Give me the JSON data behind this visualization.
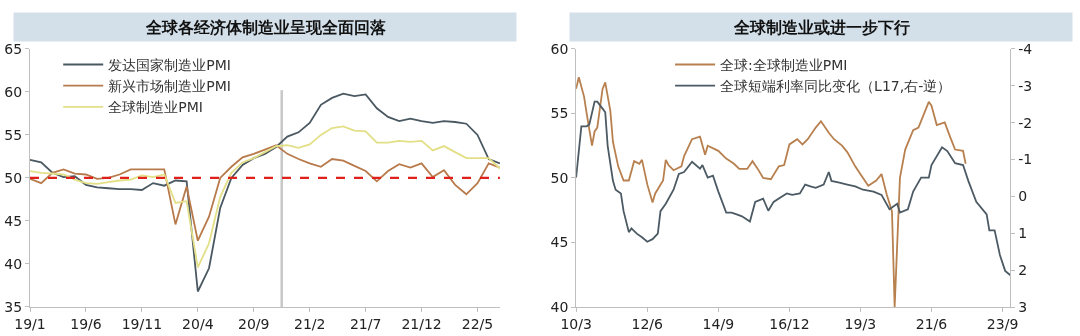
{
  "chart_data": [
    {
      "type": "line",
      "title": "全球各经济体制造业呈现全面回落",
      "legend": "top left",
      "categories": [
        "19/1",
        null,
        null,
        null,
        null,
        "19/6",
        null,
        null,
        null,
        null,
        "19/11",
        null,
        null,
        null,
        null,
        "20/4",
        null,
        null,
        null,
        null,
        "20/9",
        null,
        null,
        null,
        null,
        "21/2",
        null,
        null,
        null,
        null,
        "21/7",
        null,
        null,
        null,
        null,
        "21/12",
        null,
        null,
        null,
        null,
        "22/5",
        null,
        null
      ],
      "series": [
        {
          "name": "发达国家制造业PMI",
          "color": "#4a5862",
          "values": [
            52.1,
            51.8,
            50.6,
            50.1,
            50.2,
            49.2,
            48.9,
            48.8,
            48.7,
            48.7,
            48.6,
            49.4,
            49.1,
            49.7,
            49.6,
            36.8,
            39.5,
            46.5,
            50.0,
            51.5,
            52.3,
            52.8,
            53.6,
            54.8,
            55.3,
            56.4,
            58.5,
            59.3,
            59.8,
            59.5,
            59.7,
            58.1,
            57.1,
            56.6,
            56.9,
            56.6,
            56.4,
            56.6,
            56.5,
            56.3,
            55.0,
            52.2,
            51.7
          ]
        },
        {
          "name": "新兴市场制造业PMI",
          "color": "#b87a4b",
          "values": [
            49.9,
            49.4,
            50.6,
            51.0,
            50.5,
            50.4,
            49.9,
            50.0,
            50.4,
            51.0,
            51.0,
            51.0,
            51.0,
            44.6,
            49.0,
            42.7,
            45.5,
            50.0,
            51.3,
            52.4,
            52.8,
            53.3,
            53.8,
            52.8,
            52.2,
            51.7,
            51.3,
            52.2,
            52.0,
            51.4,
            50.8,
            49.6,
            50.8,
            51.6,
            51.2,
            51.7,
            50.1,
            50.9,
            49.2,
            48.1,
            49.4,
            51.7,
            51.2
          ]
        },
        {
          "name": "全球制造业PMI",
          "color": "#e3df86",
          "values": [
            50.8,
            50.6,
            50.5,
            50.4,
            49.8,
            49.4,
            49.3,
            49.5,
            49.7,
            49.8,
            50.3,
            50.1,
            50.4,
            47.1,
            47.3,
            39.6,
            42.4,
            47.8,
            50.6,
            51.8,
            52.3,
            53.0,
            53.7,
            53.8,
            53.5,
            53.9,
            55.0,
            55.8,
            56.0,
            55.5,
            55.4,
            54.1,
            54.1,
            54.3,
            54.2,
            54.3,
            53.2,
            53.7,
            53.0,
            52.3,
            52.3,
            52.3,
            51.1
          ]
        }
      ],
      "ylim": [
        35,
        65
      ],
      "yticks": [
        35,
        40,
        45,
        50,
        55,
        60,
        65
      ],
      "ref_lines": [
        {
          "axis": "y",
          "value": 50,
          "color": "#e0201b",
          "line_style": "dashed"
        }
      ]
    },
    {
      "type": "line",
      "title": "全球制造业或进一步下行",
      "legend": "top",
      "series": [
        {
          "name": "全球:全球制造业PMI",
          "color": "#b8804f",
          "x": [
            "2010-03",
            "2010-04",
            "2010-06",
            "2010-07",
            "2010-09",
            "2010-10",
            "2010-11",
            "2011-01",
            "2011-02",
            "2011-04",
            "2011-05",
            "2011-07",
            "2011-09",
            "2011-11",
            "2012-01",
            "2012-03",
            "2012-04",
            "2012-06",
            "2012-08",
            "2012-09",
            "2012-12",
            "2013-01",
            "2013-02",
            "2013-04",
            "2013-07",
            "2013-08",
            "2013-11",
            "2014-02",
            "2014-04",
            "2014-05",
            "2014-09",
            "2014-12",
            "2015-03",
            "2015-05",
            "2015-08",
            "2015-10",
            "2015-12",
            "2016-02",
            "2016-05",
            "2016-08",
            "2016-10",
            "2016-12",
            "2017-03",
            "2017-05",
            "2017-07",
            "2017-10",
            "2017-12",
            "2018-03",
            "2018-05",
            "2018-08",
            "2018-10",
            "2019-01",
            "2019-03",
            "2019-06",
            "2019-09",
            "2019-11",
            "2020-01",
            "2020-03",
            "2020-04",
            "2020-06",
            "2020-08",
            "2020-11",
            "2021-01",
            "2021-05",
            "2021-06",
            "2021-08",
            "2021-11",
            "2022-01",
            "2022-03",
            "2022-06",
            "2022-07"
          ],
          "values": [
            56.9,
            57.8,
            56.3,
            55.0,
            52.5,
            53.6,
            53.9,
            56.9,
            57.4,
            55.2,
            52.8,
            50.9,
            49.8,
            49.8,
            51.3,
            51.1,
            51.4,
            49.5,
            48.1,
            48.8,
            49.8,
            51.4,
            51.0,
            50.6,
            50.9,
            51.7,
            53.0,
            53.2,
            51.8,
            52.5,
            52.1,
            51.5,
            51.1,
            50.7,
            50.7,
            51.3,
            50.7,
            50.0,
            49.9,
            50.9,
            51.0,
            52.6,
            53.0,
            52.6,
            53.0,
            53.9,
            54.4,
            53.5,
            53.0,
            52.5,
            52.0,
            50.9,
            50.3,
            49.4,
            49.8,
            50.3,
            48.7,
            47.4,
            40.0,
            50.0,
            52.2,
            53.7,
            53.9,
            55.9,
            55.6,
            54.1,
            54.3,
            53.2,
            52.2,
            52.1,
            51.1
          ]
        },
        {
          "name": "全球短端利率同比变化（L17,右-逆）",
          "color": "#4c5a64",
          "axis": "y2",
          "x": [
            "2010-03",
            "2010-05",
            "2010-07",
            "2010-08",
            "2010-10",
            "2010-11",
            "2011-01",
            "2011-02",
            "2011-03",
            "2011-05",
            "2011-06",
            "2011-08",
            "2011-09",
            "2011-11",
            "2011-12",
            "2012-02",
            "2012-04",
            "2012-06",
            "2012-08",
            "2012-10",
            "2012-11",
            "2013-01",
            "2013-04",
            "2013-06",
            "2013-08",
            "2013-11",
            "2014-02",
            "2014-03",
            "2014-05",
            "2014-07",
            "2014-09",
            "2014-12",
            "2015-02",
            "2015-04",
            "2015-06",
            "2015-09",
            "2015-11",
            "2016-02",
            "2016-04",
            "2016-06",
            "2016-09",
            "2016-11",
            "2017-01",
            "2017-04",
            "2017-06",
            "2017-08",
            "2017-10",
            "2018-01",
            "2018-03",
            "2018-04",
            "2018-07",
            "2018-10",
            "2019-01",
            "2019-04",
            "2019-08",
            "2019-11",
            "2020-02",
            "2020-05",
            "2020-06",
            "2020-09",
            "2020-11",
            "2021-02",
            "2021-05",
            "2021-06",
            "2021-10",
            "2021-12",
            "2022-03",
            "2022-06",
            "2022-08",
            "2022-11",
            "2023-03",
            "2023-04",
            "2023-06",
            "2023-08",
            "2023-10",
            "2023-12"
          ],
          "values": [
            -0.51,
            -1.9,
            -1.9,
            -1.95,
            -2.57,
            -2.57,
            -2.38,
            -2.28,
            -1.37,
            -0.42,
            -0.18,
            -0.08,
            0.4,
            0.97,
            0.87,
            1.01,
            1.11,
            1.23,
            1.16,
            1.01,
            0.4,
            0.2,
            -0.18,
            -0.61,
            -0.66,
            -0.94,
            -0.75,
            -0.85,
            -0.51,
            -0.56,
            -0.13,
            0.44,
            0.44,
            0.49,
            0.54,
            0.68,
            0.15,
            0.06,
            0.39,
            0.15,
            0.01,
            -0.08,
            -0.04,
            -0.08,
            -0.32,
            -0.27,
            -0.23,
            -0.32,
            -0.66,
            -0.42,
            -0.37,
            -0.32,
            -0.27,
            -0.18,
            -0.13,
            -0.04,
            0.35,
            0.2,
            0.44,
            0.35,
            -0.13,
            -0.51,
            -0.51,
            -0.85,
            -1.33,
            -1.23,
            -0.9,
            -0.85,
            -0.42,
            0.15,
            0.49,
            0.92,
            0.92,
            1.59,
            2.02,
            2.14
          ]
        }
      ],
      "xlim": [
        "2010-03",
        "2023-12"
      ],
      "xticks": [
        {
          "value": "2010-03",
          "label": "10/3"
        },
        {
          "value": "2012-06",
          "label": "12/6"
        },
        {
          "value": "2014-09",
          "label": "14/9"
        },
        {
          "value": "2016-12",
          "label": "16/12"
        },
        {
          "value": "2019-03",
          "label": "19/3"
        },
        {
          "value": "2021-06",
          "label": "21/6"
        },
        {
          "value": "2023-09",
          "label": "23/9"
        }
      ],
      "ylim": [
        40,
        60
      ],
      "yticks": [
        40,
        45,
        50,
        55,
        60
      ],
      "y2lim": [
        3,
        -4
      ],
      "y2ticks": [
        3,
        2,
        1,
        0,
        -1,
        -2,
        -3,
        -4
      ]
    }
  ]
}
